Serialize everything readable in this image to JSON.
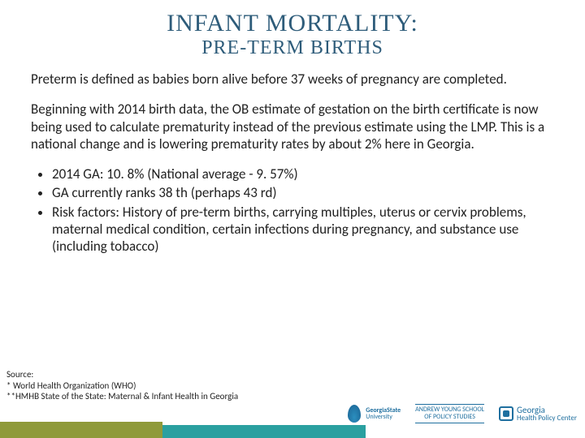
{
  "title": {
    "main": "INFANT MORTALITY:",
    "sub": "PRE-TERM BIRTHS"
  },
  "paragraphs": {
    "p1": "Preterm is defined as babies born alive before 37 weeks of pregnancy are completed.",
    "p2": "Beginning with 2014 birth data, the OB estimate of gestation on the birth certificate is now being used to calculate prematurity instead of the previous estimate using the LMP. This is a national change and is lowering prematurity rates by about 2% here in Georgia."
  },
  "bullets": [
    "2014 GA: 10. 8% (National average - 9. 57%)",
    "GA currently ranks 38 th (perhaps 43 rd)",
    "Risk factors: History of pre-term births, carrying multiples, uterus or cervix problems, maternal medical condition, certain infections during pregnancy, and substance use (including tobacco)"
  ],
  "sources": {
    "heading": "Source:",
    "lines": [
      "* World Health Organization (WHO)",
      "**HMHB State of the State: Maternal & Infant Health in Georgia"
    ]
  },
  "logos": {
    "gsu_line1": "GeorgiaState",
    "gsu_line2": "University",
    "ays_line1": "ANDREW YOUNG SCHOOL",
    "ays_line2": "OF POLICY STUDIES",
    "ghpc_line1": "Georgia",
    "ghpc_line2": "Health Policy Center"
  },
  "colors": {
    "title_color": "#2e5c7a",
    "teal_bar": "#2aa0a0",
    "olive_bar": "#8f9a3a",
    "logo_blue": "#1f6f9f"
  }
}
